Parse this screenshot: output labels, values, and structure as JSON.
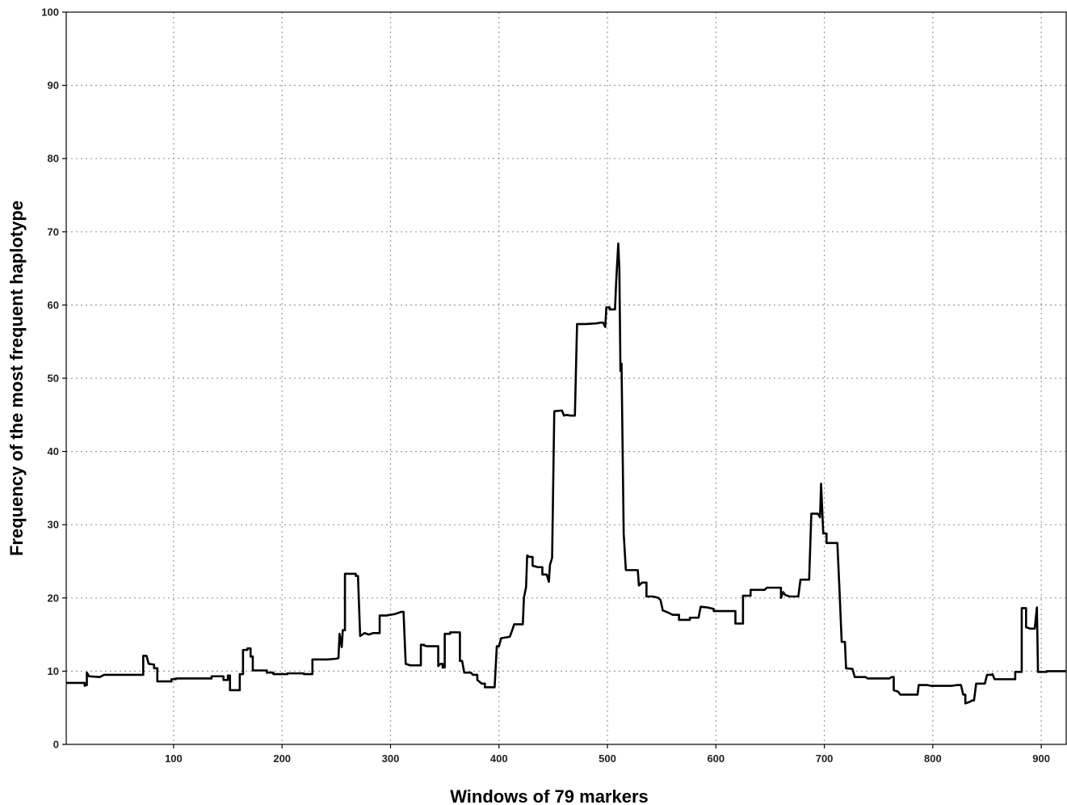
{
  "chart_data": {
    "type": "line",
    "title": "",
    "xlabel": "Windows of 79 markers",
    "ylabel": "Frequency of  the most frequent  haplotype",
    "xlim": [
      1,
      923
    ],
    "ylim": [
      0,
      100
    ],
    "x_ticks": [
      100,
      200,
      300,
      400,
      500,
      600,
      700,
      800,
      900
    ],
    "y_ticks": [
      0,
      10,
      20,
      30,
      40,
      50,
      60,
      70,
      80,
      90,
      100
    ],
    "grid": true,
    "series": [
      {
        "color": "#000000",
        "points": [
          [
            1,
            8.4
          ],
          [
            18,
            8.4
          ],
          [
            18,
            8.0
          ],
          [
            20,
            8.1
          ],
          [
            20,
            9.8
          ],
          [
            22,
            9.3
          ],
          [
            32,
            9.2
          ],
          [
            36,
            9.5
          ],
          [
            50,
            9.5
          ],
          [
            72,
            9.5
          ],
          [
            72,
            12.1
          ],
          [
            75,
            12.1
          ],
          [
            77,
            11.0
          ],
          [
            82,
            10.9
          ],
          [
            82,
            10.4
          ],
          [
            85,
            10.4
          ],
          [
            85,
            8.6
          ],
          [
            98,
            8.6
          ],
          [
            98,
            8.9
          ],
          [
            102,
            8.9
          ],
          [
            102,
            9.0
          ],
          [
            135,
            9.0
          ],
          [
            135,
            9.3
          ],
          [
            146,
            9.3
          ],
          [
            146,
            8.8
          ],
          [
            150,
            8.8
          ],
          [
            150,
            9.4
          ],
          [
            152,
            9.4
          ],
          [
            152,
            7.4
          ],
          [
            161,
            7.4
          ],
          [
            161,
            9.6
          ],
          [
            164,
            9.6
          ],
          [
            164,
            12.9
          ],
          [
            168,
            12.9
          ],
          [
            168,
            13.1
          ],
          [
            171,
            13.1
          ],
          [
            171,
            12.0
          ],
          [
            173,
            12.0
          ],
          [
            173,
            10.1
          ],
          [
            186,
            10.1
          ],
          [
            186,
            9.8
          ],
          [
            192,
            9.8
          ],
          [
            192,
            9.6
          ],
          [
            205,
            9.6
          ],
          [
            205,
            9.7
          ],
          [
            220,
            9.7
          ],
          [
            220,
            9.6
          ],
          [
            228,
            9.6
          ],
          [
            228,
            11.6
          ],
          [
            242,
            11.6
          ],
          [
            250,
            11.7
          ],
          [
            252,
            11.8
          ],
          [
            253,
            15.1
          ],
          [
            255,
            13.3
          ],
          [
            256,
            15.6
          ],
          [
            258,
            15.6
          ],
          [
            258,
            23.3
          ],
          [
            268,
            23.3
          ],
          [
            268,
            23.0
          ],
          [
            270,
            23.0
          ],
          [
            272,
            14.8
          ],
          [
            276,
            15.2
          ],
          [
            280,
            15.0
          ],
          [
            284,
            15.2
          ],
          [
            290,
            15.2
          ],
          [
            290,
            17.6
          ],
          [
            296,
            17.6
          ],
          [
            304,
            17.8
          ],
          [
            310,
            18.1
          ],
          [
            312,
            18.1
          ],
          [
            314,
            11.0
          ],
          [
            318,
            10.8
          ],
          [
            328,
            10.8
          ],
          [
            328,
            13.6
          ],
          [
            331,
            13.6
          ],
          [
            331,
            13.5
          ],
          [
            334,
            13.4
          ],
          [
            344,
            13.4
          ],
          [
            344,
            10.7
          ],
          [
            346,
            11.0
          ],
          [
            348,
            11.0
          ],
          [
            348,
            10.5
          ],
          [
            350,
            10.5
          ],
          [
            350,
            15.1
          ],
          [
            355,
            15.1
          ],
          [
            355,
            15.3
          ],
          [
            364,
            15.3
          ],
          [
            364,
            11.4
          ],
          [
            366,
            11.4
          ],
          [
            368,
            9.8
          ],
          [
            374,
            9.8
          ],
          [
            376,
            9.5
          ],
          [
            380,
            9.5
          ],
          [
            380,
            8.8
          ],
          [
            384,
            8.3
          ],
          [
            387,
            8.3
          ],
          [
            387,
            7.8
          ],
          [
            396,
            7.8
          ],
          [
            398,
            13.4
          ],
          [
            400,
            13.4
          ],
          [
            402,
            14.5
          ],
          [
            406,
            14.6
          ],
          [
            410,
            14.7
          ],
          [
            412,
            15.5
          ],
          [
            414,
            16.4
          ],
          [
            422,
            16.4
          ],
          [
            423,
            20.0
          ],
          [
            425,
            21.5
          ],
          [
            426,
            25.8
          ],
          [
            428,
            25.6
          ],
          [
            431,
            25.6
          ],
          [
            431,
            24.4
          ],
          [
            436,
            24.2
          ],
          [
            440,
            24.2
          ],
          [
            440,
            23.2
          ],
          [
            444,
            23.2
          ],
          [
            446,
            22.2
          ],
          [
            447,
            24.5
          ],
          [
            449,
            25.5
          ],
          [
            451,
            45.5
          ],
          [
            458,
            45.6
          ],
          [
            460,
            44.9
          ],
          [
            462,
            45.0
          ],
          [
            466,
            44.9
          ],
          [
            470,
            44.9
          ],
          [
            472,
            57.4
          ],
          [
            480,
            57.4
          ],
          [
            490,
            57.5
          ],
          [
            494,
            57.6
          ],
          [
            496,
            57.6
          ],
          [
            498,
            57.0
          ],
          [
            499,
            59.7
          ],
          [
            502,
            59.7
          ],
          [
            502,
            59.4
          ],
          [
            507,
            59.4
          ],
          [
            508,
            63.0
          ],
          [
            510,
            68.4
          ],
          [
            511,
            65.0
          ],
          [
            512,
            51.0
          ],
          [
            513,
            52.0
          ],
          [
            515,
            28.8
          ],
          [
            517,
            23.8
          ],
          [
            520,
            23.8
          ],
          [
            528,
            23.8
          ],
          [
            529,
            21.7
          ],
          [
            532,
            22.1
          ],
          [
            536,
            22.1
          ],
          [
            536,
            20.2
          ],
          [
            542,
            20.2
          ],
          [
            547,
            20.0
          ],
          [
            549,
            19.7
          ],
          [
            551,
            18.3
          ],
          [
            556,
            18.0
          ],
          [
            560,
            17.7
          ],
          [
            566,
            17.7
          ],
          [
            566,
            17.0
          ],
          [
            576,
            17.0
          ],
          [
            576,
            17.3
          ],
          [
            584,
            17.3
          ],
          [
            586,
            18.8
          ],
          [
            592,
            18.7
          ],
          [
            598,
            18.5
          ],
          [
            598,
            18.2
          ],
          [
            618,
            18.2
          ],
          [
            618,
            16.5
          ],
          [
            625,
            16.5
          ],
          [
            625,
            20.3
          ],
          [
            632,
            20.3
          ],
          [
            632,
            21.1
          ],
          [
            645,
            21.1
          ],
          [
            647,
            21.4
          ],
          [
            660,
            21.4
          ],
          [
            660,
            20.0
          ],
          [
            662,
            20.8
          ],
          [
            664,
            20.4
          ],
          [
            668,
            20.2
          ],
          [
            676,
            20.2
          ],
          [
            678,
            22.5
          ],
          [
            686,
            22.5
          ],
          [
            688,
            31.5
          ],
          [
            694,
            31.5
          ],
          [
            696,
            31.0
          ],
          [
            697,
            35.6
          ],
          [
            699,
            28.8
          ],
          [
            702,
            28.8
          ],
          [
            702,
            27.5
          ],
          [
            712,
            27.5
          ],
          [
            714,
            21.0
          ],
          [
            716,
            14.0
          ],
          [
            719,
            14.0
          ],
          [
            720,
            10.4
          ],
          [
            726,
            10.3
          ],
          [
            728,
            9.2
          ],
          [
            738,
            9.2
          ],
          [
            740,
            9.0
          ],
          [
            760,
            9.0
          ],
          [
            762,
            9.2
          ],
          [
            764,
            9.2
          ],
          [
            764,
            7.4
          ],
          [
            768,
            7.2
          ],
          [
            770,
            6.8
          ],
          [
            786,
            6.8
          ],
          [
            787,
            8.1
          ],
          [
            795,
            8.1
          ],
          [
            798,
            8.0
          ],
          [
            818,
            8.0
          ],
          [
            822,
            8.1
          ],
          [
            826,
            8.1
          ],
          [
            828,
            6.8
          ],
          [
            830,
            6.8
          ],
          [
            830,
            5.6
          ],
          [
            834,
            5.8
          ],
          [
            836,
            6.0
          ],
          [
            838,
            6.0
          ],
          [
            840,
            8.3
          ],
          [
            848,
            8.3
          ],
          [
            850,
            9.5
          ],
          [
            854,
            9.5
          ],
          [
            855,
            9.6
          ],
          [
            857,
            8.9
          ],
          [
            868,
            8.9
          ],
          [
            876,
            8.9
          ],
          [
            876,
            9.9
          ],
          [
            882,
            9.9
          ],
          [
            882,
            18.6
          ],
          [
            886,
            18.6
          ],
          [
            886,
            16.0
          ],
          [
            890,
            15.8
          ],
          [
            894,
            15.8
          ],
          [
            896,
            18.7
          ],
          [
            897,
            9.9
          ],
          [
            905,
            9.9
          ],
          [
            905,
            10.0
          ],
          [
            923,
            10.0
          ]
        ]
      }
    ]
  }
}
